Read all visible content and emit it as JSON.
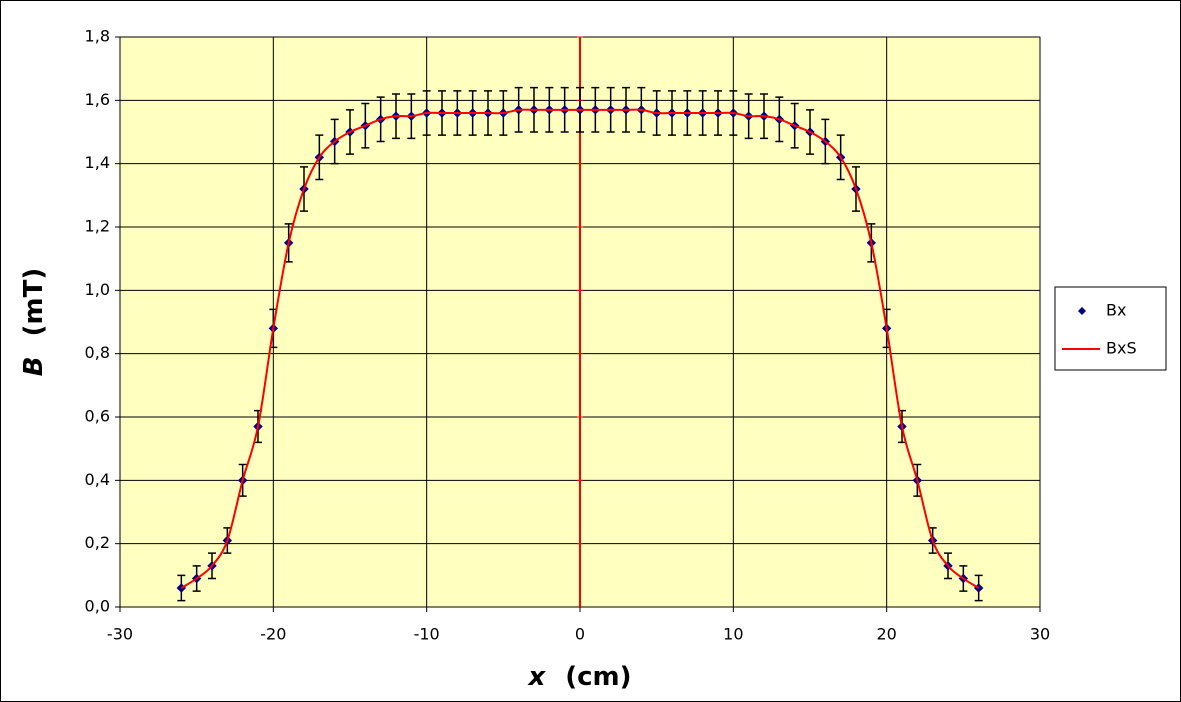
{
  "chart_data": {
    "type": "scatter",
    "xlabel_symbol": "x",
    "xlabel_unit": "(cm)",
    "ylabel_symbol": "B",
    "ylabel_unit": "(mT)",
    "x": [
      -26,
      -25,
      -24,
      -23,
      -22,
      -21,
      -20,
      -19,
      -18,
      -17,
      -16,
      -15,
      -14,
      -13,
      -12,
      -11,
      -10,
      -9,
      -8,
      -7,
      -6,
      -5,
      -4,
      -3,
      -2,
      -1,
      0,
      1,
      2,
      3,
      4,
      5,
      6,
      7,
      8,
      9,
      10,
      11,
      12,
      13,
      14,
      15,
      16,
      17,
      18,
      19,
      20,
      21,
      22,
      23,
      24,
      25,
      26
    ],
    "series": [
      {
        "name": "Bx",
        "color": "#000080",
        "style": "markers",
        "values": [
          0.06,
          0.09,
          0.13,
          0.21,
          0.4,
          0.57,
          0.88,
          1.15,
          1.32,
          1.42,
          1.47,
          1.5,
          1.52,
          1.54,
          1.55,
          1.55,
          1.56,
          1.56,
          1.56,
          1.56,
          1.56,
          1.56,
          1.57,
          1.57,
          1.57,
          1.57,
          1.57,
          1.57,
          1.57,
          1.57,
          1.57,
          1.56,
          1.56,
          1.56,
          1.56,
          1.56,
          1.56,
          1.55,
          1.55,
          1.54,
          1.52,
          1.5,
          1.47,
          1.42,
          1.32,
          1.15,
          0.88,
          0.57,
          0.4,
          0.21,
          0.13,
          0.09,
          0.06
        ],
        "errors": [
          0.04,
          0.04,
          0.04,
          0.04,
          0.05,
          0.05,
          0.06,
          0.06,
          0.07,
          0.07,
          0.07,
          0.07,
          0.07,
          0.07,
          0.07,
          0.07,
          0.07,
          0.07,
          0.07,
          0.07,
          0.07,
          0.07,
          0.07,
          0.07,
          0.07,
          0.07,
          0.07,
          0.07,
          0.07,
          0.07,
          0.07,
          0.07,
          0.07,
          0.07,
          0.07,
          0.07,
          0.07,
          0.07,
          0.07,
          0.07,
          0.07,
          0.07,
          0.07,
          0.07,
          0.07,
          0.06,
          0.06,
          0.05,
          0.05,
          0.04,
          0.04,
          0.04,
          0.04
        ]
      },
      {
        "name": "BxS",
        "color": "#ff0000",
        "style": "smooth-line",
        "values": [
          0.06,
          0.09,
          0.13,
          0.21,
          0.4,
          0.57,
          0.88,
          1.15,
          1.32,
          1.42,
          1.47,
          1.5,
          1.52,
          1.54,
          1.55,
          1.55,
          1.56,
          1.56,
          1.56,
          1.56,
          1.56,
          1.56,
          1.57,
          1.57,
          1.57,
          1.57,
          1.57,
          1.57,
          1.57,
          1.57,
          1.57,
          1.56,
          1.56,
          1.56,
          1.56,
          1.56,
          1.56,
          1.55,
          1.55,
          1.54,
          1.52,
          1.5,
          1.47,
          1.42,
          1.32,
          1.15,
          0.88,
          0.57,
          0.4,
          0.21,
          0.13,
          0.09,
          0.06
        ]
      }
    ],
    "xlim": [
      -30,
      30
    ],
    "xticks": [
      -30,
      -20,
      -10,
      0,
      10,
      20,
      30
    ],
    "ylim": [
      0,
      1.8
    ],
    "yticks": [
      {
        "value": 0,
        "label": "0,0"
      },
      {
        "value": 0.2,
        "label": "0,2"
      },
      {
        "value": 0.4,
        "label": "0,4"
      },
      {
        "value": 0.6,
        "label": "0,6"
      },
      {
        "value": 0.8,
        "label": "0,8"
      },
      {
        "value": 1.0,
        "label": "1,0"
      },
      {
        "value": 1.2,
        "label": "1,2"
      },
      {
        "value": 1.4,
        "label": "1,4"
      },
      {
        "value": 1.6,
        "label": "1,6"
      },
      {
        "value": 1.8,
        "label": "1,8"
      }
    ],
    "grid": true,
    "plot_background": "#ffffc0",
    "yaxis_at": 0,
    "yaxis_color": "#ff0000",
    "legend": "right"
  }
}
